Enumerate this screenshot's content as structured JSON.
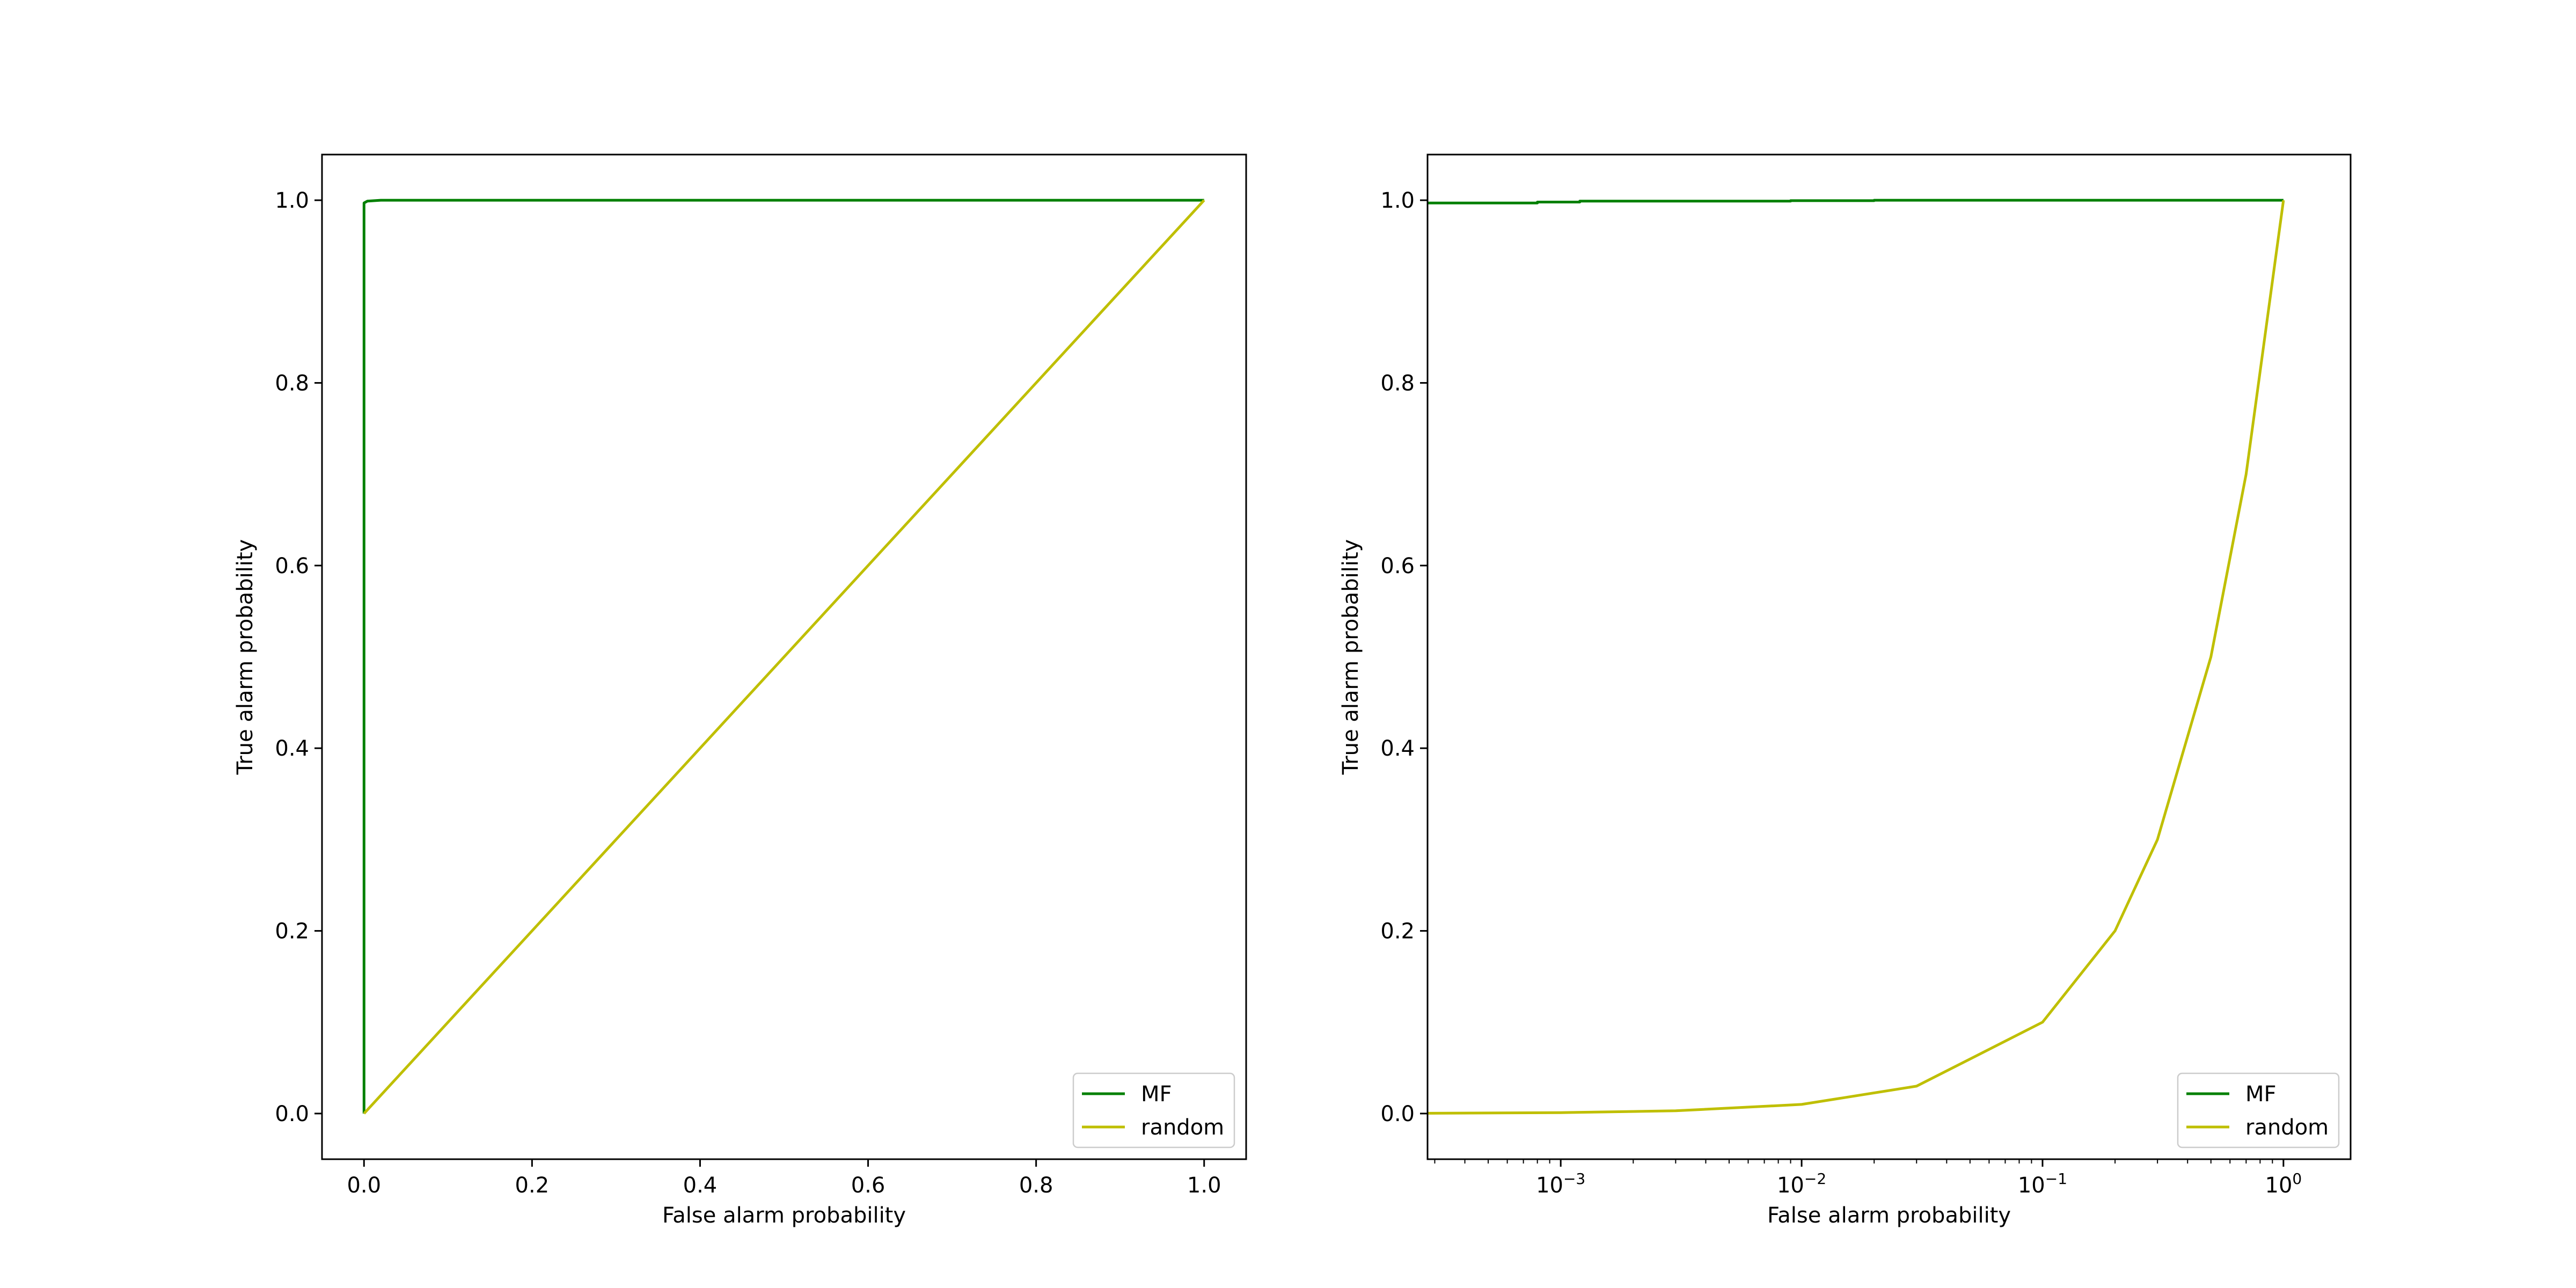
{
  "colors": {
    "MF": "#008000",
    "random": "#bfbf00"
  },
  "chart_data": [
    {
      "type": "line",
      "xlabel": "False alarm probability",
      "ylabel": "True alarm probability",
      "xscale": "linear",
      "xlim": [
        -0.05,
        1.05
      ],
      "ylim": [
        -0.05,
        1.05
      ],
      "xticks": [
        0.0,
        0.2,
        0.4,
        0.6,
        0.8,
        1.0
      ],
      "xtick_labels": [
        "0.0",
        "0.2",
        "0.4",
        "0.6",
        "0.8",
        "1.0"
      ],
      "yticks": [
        0.0,
        0.2,
        0.4,
        0.6,
        0.8,
        1.0
      ],
      "ytick_labels": [
        "0.0",
        "0.2",
        "0.4",
        "0.6",
        "0.8",
        "1.0"
      ],
      "grid": false,
      "legend_position": "lower-right",
      "series": [
        {
          "name": "MF",
          "x": [
            0.0,
            0.0,
            0.002,
            0.004,
            0.02,
            1.0
          ],
          "y": [
            0.0,
            0.997,
            0.998,
            0.999,
            1.0,
            1.0
          ]
        },
        {
          "name": "random",
          "x": [
            0.0,
            1.0
          ],
          "y": [
            0.0,
            1.0
          ]
        }
      ]
    },
    {
      "type": "line",
      "xlabel": "False alarm probability",
      "ylabel": "True alarm probability",
      "xscale": "log",
      "xlim": [
        0.00028,
        1.9
      ],
      "ylim": [
        -0.05,
        1.05
      ],
      "xticks": [
        0.001,
        0.01,
        0.1,
        1
      ],
      "xtick_labels": [
        {
          "base": "10",
          "exp": "−3"
        },
        {
          "base": "10",
          "exp": "−2"
        },
        {
          "base": "10",
          "exp": "−1"
        },
        {
          "base": "10",
          "exp": "0"
        }
      ],
      "yticks": [
        0.0,
        0.2,
        0.4,
        0.6,
        0.8,
        1.0
      ],
      "ytick_labels": [
        "0.0",
        "0.2",
        "0.4",
        "0.6",
        "0.8",
        "1.0"
      ],
      "grid": false,
      "legend_position": "lower-right",
      "series": [
        {
          "name": "MF",
          "x": [
            0.00028,
            0.0008,
            0.0008,
            0.0012,
            0.0012,
            0.009,
            0.009,
            0.02,
            0.02,
            1.0
          ],
          "y": [
            0.997,
            0.997,
            0.998,
            0.998,
            0.999,
            0.999,
            0.9995,
            0.9995,
            1.0,
            1.0
          ]
        },
        {
          "name": "random",
          "x": [
            0.00028,
            0.001,
            0.003,
            0.01,
            0.03,
            0.1,
            0.2,
            0.3,
            0.5,
            0.7,
            1.0
          ],
          "y": [
            0.00028,
            0.001,
            0.003,
            0.01,
            0.03,
            0.1,
            0.2,
            0.3,
            0.5,
            0.7,
            1.0
          ]
        }
      ]
    }
  ]
}
